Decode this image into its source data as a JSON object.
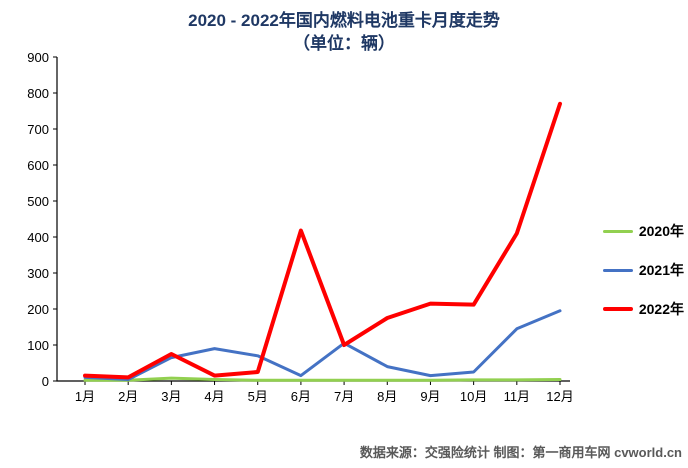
{
  "title": {
    "line1": "2020 - 2022年国内燃料电池重卡月度走势",
    "line2": "（单位：辆）"
  },
  "footer": {
    "text": "数据来源：交强险统计 制图：第一商用车网 cvworld.cn"
  },
  "chart_data": {
    "type": "line",
    "title": "2020 - 2022年国内燃料电池重卡月度走势（单位：辆）",
    "categories": [
      "1月",
      "2月",
      "3月",
      "4月",
      "5月",
      "6月",
      "7月",
      "8月",
      "9月",
      "10月",
      "11月",
      "12月"
    ],
    "series": [
      {
        "name": "2020年",
        "color": "#92d050",
        "stroke_width": 3,
        "values": [
          2,
          2,
          8,
          4,
          2,
          2,
          2,
          2,
          2,
          3,
          3,
          4
        ]
      },
      {
        "name": "2021年",
        "color": "#4472c4",
        "stroke_width": 3,
        "values": [
          10,
          4,
          65,
          90,
          70,
          15,
          105,
          40,
          15,
          25,
          145,
          195
        ]
      },
      {
        "name": "2022年",
        "color": "#ff0000",
        "stroke_width": 4,
        "values": [
          15,
          10,
          75,
          15,
          25,
          418,
          100,
          175,
          215,
          212,
          410,
          770
        ]
      }
    ],
    "xlabel": "",
    "ylabel": "",
    "ylim": [
      0,
      900
    ],
    "ytick_step": 100,
    "grid": false,
    "legend_position": "right",
    "axis_color": "#000000"
  }
}
